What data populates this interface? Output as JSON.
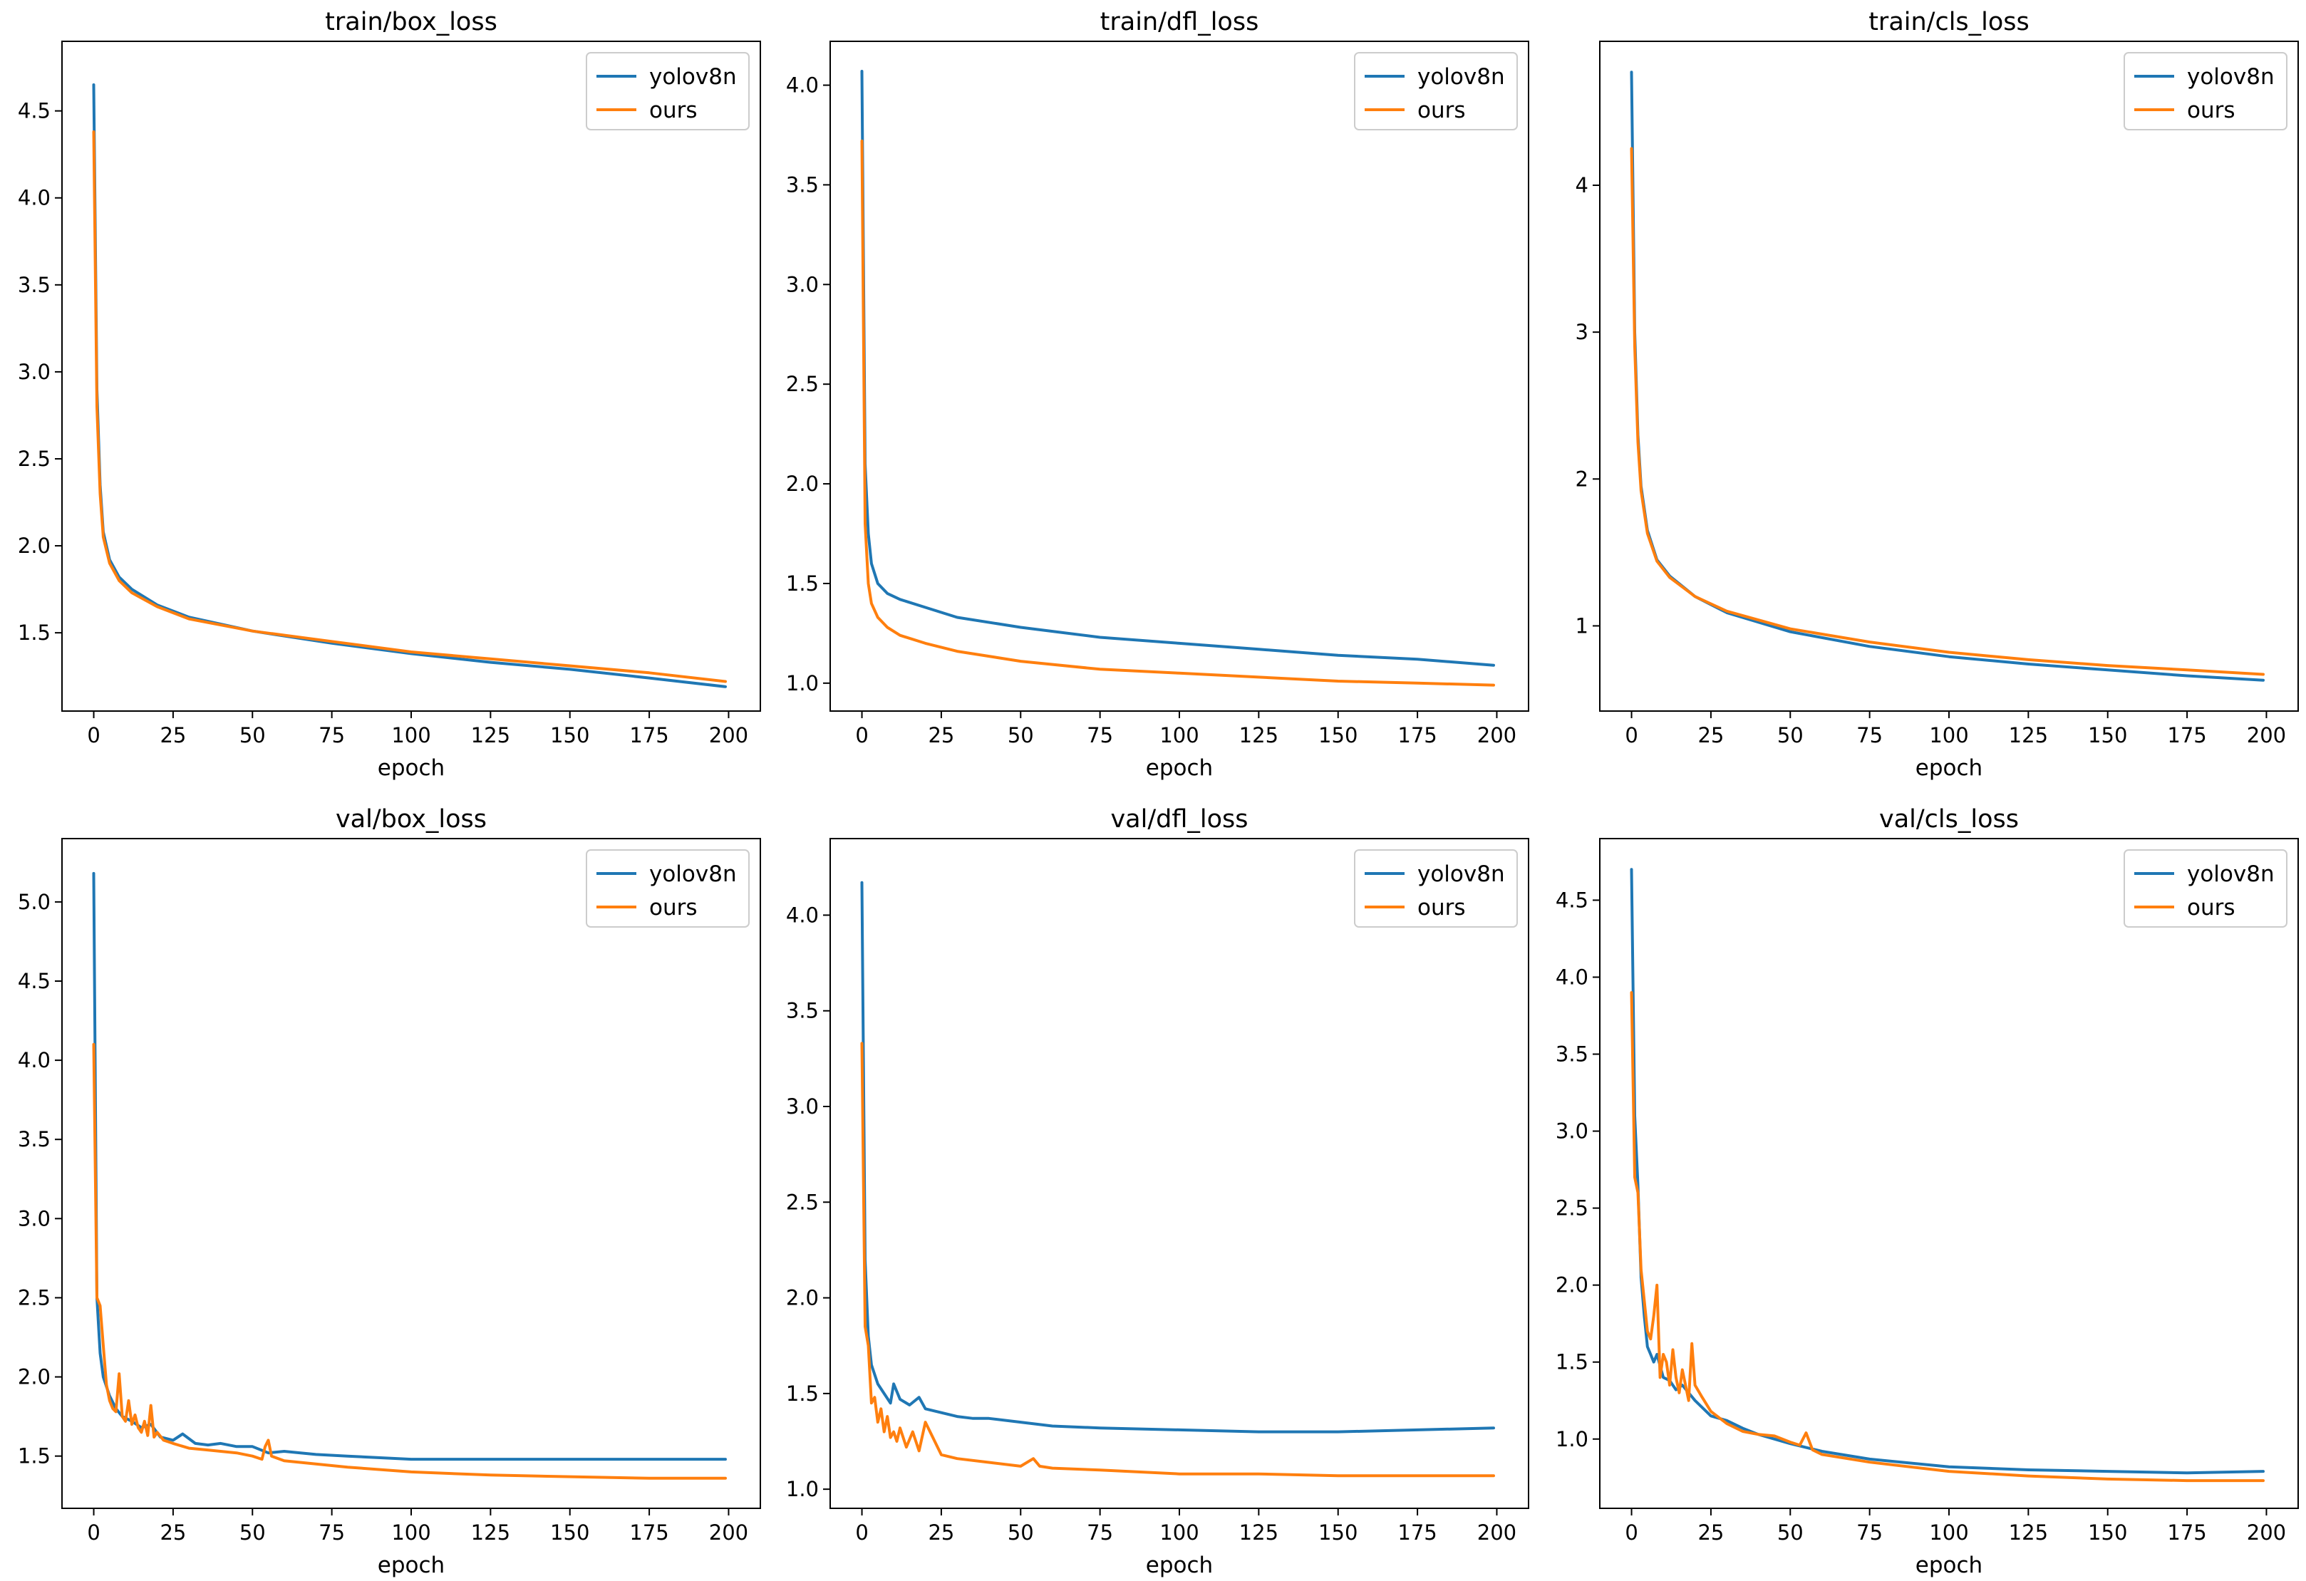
{
  "colors": {
    "yolov8n": "#1f77b4",
    "ours": "#ff7f0e"
  },
  "chart_data": [
    {
      "type": "line",
      "title": "train/box_loss",
      "xlabel": "epoch",
      "ylabel": "",
      "xlim": [
        -10,
        210
      ],
      "ylim": [
        1.05,
        4.9
      ],
      "xticks": [
        0,
        25,
        50,
        75,
        100,
        125,
        150,
        175,
        200
      ],
      "yticks": [
        1.5,
        2.0,
        2.5,
        3.0,
        3.5,
        4.0,
        4.5
      ],
      "ytick_labels": [
        "1.5",
        "2.0",
        "2.5",
        "3.0",
        "3.5",
        "4.0",
        "4.5"
      ],
      "legend_position": "top-right",
      "series": [
        {
          "name": "yolov8n",
          "color_key": "yolov8n",
          "x": [
            0,
            1,
            2,
            3,
            5,
            8,
            12,
            20,
            30,
            50,
            75,
            100,
            125,
            150,
            175,
            199
          ],
          "y": [
            4.65,
            2.9,
            2.35,
            2.08,
            1.92,
            1.82,
            1.75,
            1.66,
            1.59,
            1.51,
            1.44,
            1.38,
            1.33,
            1.29,
            1.24,
            1.19
          ]
        },
        {
          "name": "ours",
          "color_key": "ours",
          "x": [
            0,
            1,
            2,
            3,
            5,
            8,
            12,
            20,
            30,
            50,
            75,
            100,
            125,
            150,
            175,
            199
          ],
          "y": [
            4.38,
            2.8,
            2.3,
            2.05,
            1.9,
            1.8,
            1.73,
            1.65,
            1.58,
            1.51,
            1.45,
            1.39,
            1.35,
            1.31,
            1.27,
            1.22
          ]
        }
      ]
    },
    {
      "type": "line",
      "title": "train/dfl_loss",
      "xlabel": "epoch",
      "ylabel": "",
      "xlim": [
        -10,
        210
      ],
      "ylim": [
        0.86,
        4.22
      ],
      "xticks": [
        0,
        25,
        50,
        75,
        100,
        125,
        150,
        175,
        200
      ],
      "yticks": [
        1.0,
        1.5,
        2.0,
        2.5,
        3.0,
        3.5,
        4.0
      ],
      "ytick_labels": [
        "1.0",
        "1.5",
        "2.0",
        "2.5",
        "3.0",
        "3.5",
        "4.0"
      ],
      "legend_position": "top-right",
      "series": [
        {
          "name": "yolov8n",
          "color_key": "yolov8n",
          "x": [
            0,
            1,
            2,
            3,
            5,
            8,
            12,
            20,
            30,
            50,
            75,
            100,
            125,
            150,
            175,
            199
          ],
          "y": [
            4.07,
            2.1,
            1.75,
            1.6,
            1.5,
            1.45,
            1.42,
            1.38,
            1.33,
            1.28,
            1.23,
            1.2,
            1.17,
            1.14,
            1.12,
            1.09
          ]
        },
        {
          "name": "ours",
          "color_key": "ours",
          "x": [
            0,
            1,
            2,
            3,
            5,
            8,
            12,
            20,
            30,
            50,
            75,
            100,
            125,
            150,
            175,
            199
          ],
          "y": [
            3.72,
            1.8,
            1.5,
            1.4,
            1.33,
            1.28,
            1.24,
            1.2,
            1.16,
            1.11,
            1.07,
            1.05,
            1.03,
            1.01,
            1.0,
            0.99
          ]
        }
      ]
    },
    {
      "type": "line",
      "title": "train/cls_loss",
      "xlabel": "epoch",
      "ylabel": "",
      "xlim": [
        -10,
        210
      ],
      "ylim": [
        0.42,
        4.98
      ],
      "xticks": [
        0,
        25,
        50,
        75,
        100,
        125,
        150,
        175,
        200
      ],
      "yticks": [
        1,
        2,
        3,
        4
      ],
      "ytick_labels": [
        "1",
        "2",
        "3",
        "4"
      ],
      "legend_position": "top-right",
      "series": [
        {
          "name": "yolov8n",
          "color_key": "yolov8n",
          "x": [
            0,
            1,
            2,
            3,
            5,
            8,
            12,
            20,
            30,
            50,
            75,
            100,
            125,
            150,
            175,
            199
          ],
          "y": [
            4.77,
            3.0,
            2.3,
            1.95,
            1.65,
            1.45,
            1.34,
            1.2,
            1.09,
            0.96,
            0.86,
            0.79,
            0.74,
            0.7,
            0.66,
            0.63
          ]
        },
        {
          "name": "ours",
          "color_key": "ours",
          "x": [
            0,
            1,
            2,
            3,
            5,
            8,
            12,
            20,
            30,
            50,
            75,
            100,
            125,
            150,
            175,
            199
          ],
          "y": [
            4.25,
            2.9,
            2.25,
            1.92,
            1.63,
            1.44,
            1.33,
            1.2,
            1.1,
            0.98,
            0.89,
            0.82,
            0.77,
            0.73,
            0.7,
            0.67
          ]
        }
      ]
    },
    {
      "type": "line",
      "title": "val/box_loss",
      "xlabel": "epoch",
      "ylabel": "",
      "xlim": [
        -10,
        210
      ],
      "ylim": [
        1.17,
        5.4
      ],
      "xticks": [
        0,
        25,
        50,
        75,
        100,
        125,
        150,
        175,
        200
      ],
      "yticks": [
        1.5,
        2.0,
        2.5,
        3.0,
        3.5,
        4.0,
        4.5,
        5.0
      ],
      "ytick_labels": [
        "1.5",
        "2.0",
        "2.5",
        "3.0",
        "3.5",
        "4.0",
        "4.5",
        "5.0"
      ],
      "legend_position": "top-right",
      "series": [
        {
          "name": "yolov8n",
          "color_key": "yolov8n",
          "x": [
            0,
            1,
            2,
            3,
            5,
            7,
            9,
            12,
            15,
            18,
            21,
            25,
            28,
            32,
            36,
            40,
            45,
            50,
            55,
            60,
            70,
            80,
            100,
            125,
            150,
            175,
            199
          ],
          "y": [
            5.18,
            2.5,
            2.15,
            2.0,
            1.88,
            1.8,
            1.75,
            1.72,
            1.68,
            1.7,
            1.62,
            1.6,
            1.64,
            1.58,
            1.57,
            1.58,
            1.56,
            1.56,
            1.52,
            1.53,
            1.51,
            1.5,
            1.48,
            1.48,
            1.48,
            1.48,
            1.48
          ]
        },
        {
          "name": "ours",
          "color_key": "ours",
          "x": [
            0,
            1,
            2,
            3,
            4,
            5,
            6,
            7,
            8,
            9,
            10,
            11,
            12,
            13,
            14,
            15,
            16,
            17,
            18,
            19,
            20,
            22,
            25,
            30,
            35,
            40,
            45,
            50,
            53,
            54,
            55,
            56,
            60,
            70,
            80,
            100,
            125,
            150,
            175,
            199
          ],
          "y": [
            4.1,
            2.5,
            2.45,
            2.2,
            1.95,
            1.85,
            1.8,
            1.78,
            2.02,
            1.75,
            1.72,
            1.85,
            1.7,
            1.76,
            1.68,
            1.65,
            1.72,
            1.63,
            1.82,
            1.62,
            1.65,
            1.6,
            1.58,
            1.55,
            1.54,
            1.53,
            1.52,
            1.5,
            1.48,
            1.56,
            1.6,
            1.5,
            1.47,
            1.45,
            1.43,
            1.4,
            1.38,
            1.37,
            1.36,
            1.36
          ]
        }
      ]
    },
    {
      "type": "line",
      "title": "val/dfl_loss",
      "xlabel": "epoch",
      "ylabel": "",
      "xlim": [
        -10,
        210
      ],
      "ylim": [
        0.9,
        4.4
      ],
      "xticks": [
        0,
        25,
        50,
        75,
        100,
        125,
        150,
        175,
        200
      ],
      "yticks": [
        1.0,
        1.5,
        2.0,
        2.5,
        3.0,
        3.5,
        4.0
      ],
      "ytick_labels": [
        "1.0",
        "1.5",
        "2.0",
        "2.5",
        "3.0",
        "3.5",
        "4.0"
      ],
      "legend_position": "top-right",
      "series": [
        {
          "name": "yolov8n",
          "color_key": "yolov8n",
          "x": [
            0,
            1,
            2,
            3,
            5,
            7,
            9,
            10,
            12,
            15,
            18,
            20,
            25,
            30,
            35,
            40,
            50,
            60,
            75,
            100,
            125,
            150,
            175,
            199
          ],
          "y": [
            4.17,
            2.2,
            1.8,
            1.65,
            1.55,
            1.5,
            1.45,
            1.55,
            1.47,
            1.44,
            1.48,
            1.42,
            1.4,
            1.38,
            1.37,
            1.37,
            1.35,
            1.33,
            1.32,
            1.31,
            1.3,
            1.3,
            1.31,
            1.32
          ]
        },
        {
          "name": "ours",
          "color_key": "ours",
          "x": [
            0,
            1,
            2,
            3,
            4,
            5,
            6,
            7,
            8,
            9,
            10,
            11,
            12,
            14,
            16,
            18,
            20,
            25,
            30,
            40,
            50,
            54,
            56,
            60,
            75,
            100,
            125,
            150,
            175,
            199
          ],
          "y": [
            3.33,
            1.85,
            1.75,
            1.45,
            1.48,
            1.35,
            1.42,
            1.3,
            1.38,
            1.27,
            1.3,
            1.25,
            1.32,
            1.22,
            1.3,
            1.2,
            1.35,
            1.18,
            1.16,
            1.14,
            1.12,
            1.16,
            1.12,
            1.11,
            1.1,
            1.08,
            1.08,
            1.07,
            1.07,
            1.07
          ]
        }
      ]
    },
    {
      "type": "line",
      "title": "val/cls_loss",
      "xlabel": "epoch",
      "ylabel": "",
      "xlim": [
        -10,
        210
      ],
      "ylim": [
        0.55,
        4.9
      ],
      "xticks": [
        0,
        25,
        50,
        75,
        100,
        125,
        150,
        175,
        200
      ],
      "yticks": [
        1.0,
        1.5,
        2.0,
        2.5,
        3.0,
        3.5,
        4.0,
        4.5
      ],
      "ytick_labels": [
        "1.0",
        "1.5",
        "2.0",
        "2.5",
        "3.0",
        "3.5",
        "4.0",
        "4.5"
      ],
      "legend_position": "top-right",
      "series": [
        {
          "name": "yolov8n",
          "color_key": "yolov8n",
          "x": [
            0,
            1,
            2,
            3,
            4,
            5,
            6,
            7,
            8,
            10,
            12,
            14,
            16,
            18,
            20,
            25,
            30,
            35,
            40,
            50,
            60,
            75,
            100,
            125,
            150,
            175,
            199
          ],
          "y": [
            4.7,
            3.1,
            2.65,
            2.05,
            1.8,
            1.6,
            1.55,
            1.5,
            1.55,
            1.4,
            1.38,
            1.32,
            1.35,
            1.3,
            1.25,
            1.15,
            1.12,
            1.07,
            1.03,
            0.97,
            0.92,
            0.87,
            0.82,
            0.8,
            0.79,
            0.78,
            0.79
          ]
        },
        {
          "name": "ours",
          "color_key": "ours",
          "x": [
            0,
            1,
            2,
            3,
            4,
            5,
            6,
            7,
            8,
            9,
            10,
            11,
            12,
            13,
            14,
            15,
            16,
            17,
            18,
            19,
            20,
            22,
            25,
            30,
            35,
            40,
            45,
            50,
            53,
            55,
            57,
            60,
            75,
            100,
            125,
            150,
            175,
            199
          ],
          "y": [
            3.9,
            2.7,
            2.6,
            2.1,
            1.9,
            1.7,
            1.65,
            1.8,
            2.0,
            1.4,
            1.55,
            1.5,
            1.35,
            1.58,
            1.4,
            1.3,
            1.45,
            1.35,
            1.25,
            1.62,
            1.35,
            1.28,
            1.18,
            1.1,
            1.05,
            1.03,
            1.02,
            0.98,
            0.96,
            1.04,
            0.93,
            0.9,
            0.85,
            0.79,
            0.76,
            0.74,
            0.73,
            0.73
          ]
        }
      ]
    }
  ]
}
